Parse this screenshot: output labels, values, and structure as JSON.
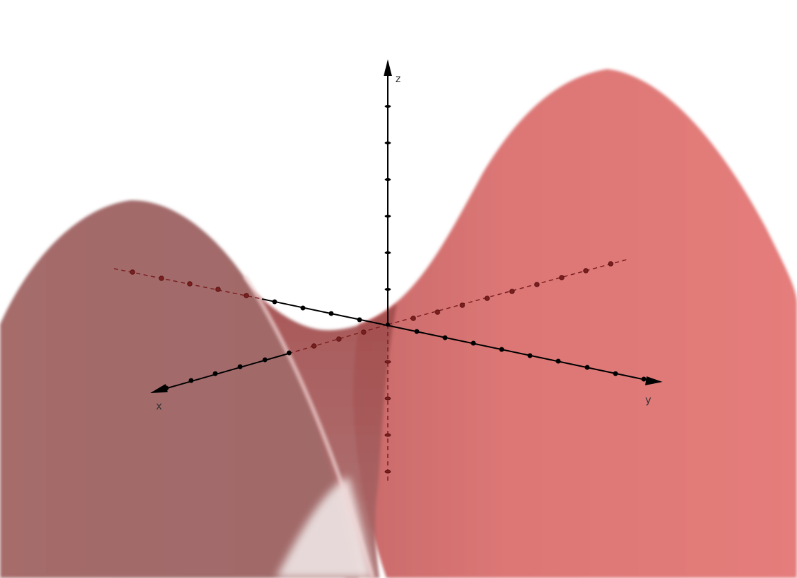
{
  "axes": {
    "x_label": "x",
    "y_label": "y",
    "z_label": "z"
  },
  "surface": {
    "description_equation_form": "saddle",
    "front_color": "#e27a78",
    "back_color": "#a46a69",
    "inner_color": "#b45a5a"
  },
  "colors": {
    "axis": "#000000",
    "hidden_axis": "#7a1f1f"
  }
}
